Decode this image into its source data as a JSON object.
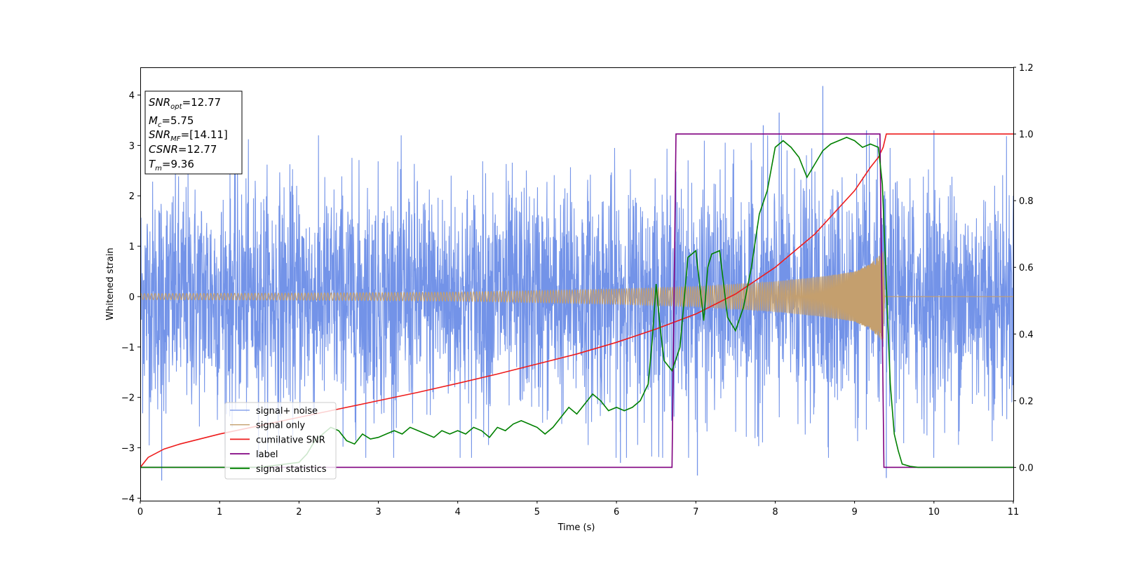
{
  "chart_data": {
    "type": "line",
    "title": "",
    "xlabel": "Time (s)",
    "ylabel": "Whitened strain",
    "xlim": [
      0,
      11
    ],
    "ylim": [
      -4.05,
      4.55
    ],
    "ylim_right": [
      -0.1,
      1.2
    ],
    "x_ticks": [
      "0",
      "1",
      "2",
      "3",
      "4",
      "5",
      "6",
      "7",
      "8",
      "9",
      "10",
      "11"
    ],
    "y_ticks": [
      "−4",
      "−3",
      "−2",
      "−1",
      "0",
      "1",
      "2",
      "3",
      "4"
    ],
    "y_right_ticks": [
      "0.0",
      "0.2",
      "0.4",
      "0.6",
      "0.8",
      "1.0",
      "1.2"
    ],
    "legend_location": "lower-left",
    "annotation": [
      {
        "sym": "SNR",
        "sub": "opt",
        "value": "=12.77"
      },
      {
        "sym": "M",
        "sub": "c",
        "value": "=5.75"
      },
      {
        "sym": "SNR",
        "sub": "MF",
        "value": "=[14.11]"
      },
      {
        "sym": "CSNR",
        "sub": "",
        "value": "=12.77"
      },
      {
        "sym": "T",
        "sub": "m",
        "value": "=9.36"
      }
    ],
    "series": [
      {
        "name": "signal+ noise",
        "axis": "left",
        "color": "#7393e8",
        "kind": "noisy-strain",
        "typical_range": [
          -2.7,
          2.7
        ],
        "extremes": [
          [
            0.27,
            -3.65
          ],
          [
            6.05,
            -3.3
          ],
          [
            7.02,
            -3.55
          ],
          [
            7.85,
            3.4
          ],
          [
            8.05,
            3.65
          ],
          [
            8.6,
            4.18
          ],
          [
            9.15,
            3.3
          ],
          [
            9.4,
            -3.6
          ],
          [
            10.0,
            3.3
          ]
        ]
      },
      {
        "name": "signal only",
        "axis": "left",
        "color": "#c49f6e",
        "kind": "chirp-envelope",
        "envelope": [
          [
            0,
            0.06
          ],
          [
            2,
            0.07
          ],
          [
            4,
            0.09
          ],
          [
            5,
            0.12
          ],
          [
            6,
            0.15
          ],
          [
            7,
            0.2
          ],
          [
            8,
            0.3
          ],
          [
            8.6,
            0.4
          ],
          [
            9.0,
            0.5
          ],
          [
            9.2,
            0.65
          ],
          [
            9.3,
            0.8
          ],
          [
            9.36,
            0.9
          ],
          [
            9.38,
            0.0
          ],
          [
            11,
            0.0
          ]
        ]
      },
      {
        "name": "cumilative SNR",
        "axis": "right",
        "color": "#ee1c1c",
        "x": [
          0,
          0.1,
          0.3,
          0.5,
          1,
          1.5,
          2,
          2.5,
          3,
          3.5,
          4,
          4.5,
          5,
          5.5,
          6,
          6.5,
          7,
          7.5,
          8,
          8.5,
          9,
          9.2,
          9.3,
          9.36,
          9.4,
          11
        ],
        "y": [
          0.0,
          0.03,
          0.055,
          0.07,
          0.1,
          0.125,
          0.15,
          0.175,
          0.2,
          0.225,
          0.252,
          0.28,
          0.31,
          0.34,
          0.375,
          0.415,
          0.46,
          0.52,
          0.6,
          0.7,
          0.83,
          0.9,
          0.93,
          0.96,
          1.0,
          1.0
        ]
      },
      {
        "name": "label",
        "axis": "right",
        "color": "#800080",
        "x": [
          0,
          6.7,
          6.75,
          9.32,
          9.37,
          11
        ],
        "y": [
          0,
          0,
          1,
          1,
          0,
          0
        ]
      },
      {
        "name": "signal statistics",
        "axis": "right",
        "color": "#008000",
        "x": [
          0,
          1.5,
          2.0,
          2.1,
          2.2,
          2.4,
          2.5,
          2.6,
          2.7,
          2.8,
          2.9,
          3.0,
          3.1,
          3.2,
          3.3,
          3.4,
          3.5,
          3.6,
          3.7,
          3.8,
          3.9,
          4.0,
          4.1,
          4.2,
          4.3,
          4.4,
          4.5,
          4.6,
          4.7,
          4.8,
          4.9,
          5.0,
          5.1,
          5.2,
          5.3,
          5.4,
          5.5,
          5.6,
          5.7,
          5.8,
          5.9,
          6.0,
          6.1,
          6.2,
          6.3,
          6.4,
          6.45,
          6.5,
          6.55,
          6.6,
          6.7,
          6.8,
          6.9,
          7.0,
          7.1,
          7.15,
          7.2,
          7.3,
          7.4,
          7.5,
          7.6,
          7.7,
          7.8,
          7.9,
          8.0,
          8.1,
          8.2,
          8.3,
          8.4,
          8.5,
          8.6,
          8.7,
          8.8,
          8.9,
          9.0,
          9.1,
          9.2,
          9.3,
          9.35,
          9.4,
          9.45,
          9.5,
          9.55,
          9.6,
          9.7,
          9.8,
          10,
          11
        ],
        "y": [
          0.0,
          0.0,
          0.015,
          0.04,
          0.08,
          0.12,
          0.11,
          0.08,
          0.07,
          0.1,
          0.085,
          0.09,
          0.1,
          0.11,
          0.1,
          0.12,
          0.11,
          0.1,
          0.09,
          0.11,
          0.1,
          0.11,
          0.1,
          0.12,
          0.11,
          0.09,
          0.12,
          0.11,
          0.13,
          0.14,
          0.13,
          0.12,
          0.1,
          0.12,
          0.15,
          0.18,
          0.16,
          0.19,
          0.22,
          0.2,
          0.17,
          0.18,
          0.17,
          0.18,
          0.2,
          0.25,
          0.38,
          0.55,
          0.42,
          0.32,
          0.29,
          0.36,
          0.63,
          0.65,
          0.44,
          0.6,
          0.64,
          0.65,
          0.45,
          0.41,
          0.48,
          0.6,
          0.76,
          0.83,
          0.96,
          0.98,
          0.96,
          0.93,
          0.87,
          0.91,
          0.95,
          0.97,
          0.98,
          0.99,
          0.98,
          0.96,
          0.97,
          0.96,
          0.85,
          0.55,
          0.25,
          0.1,
          0.05,
          0.01,
          0.003,
          0.0,
          0.0,
          0.0
        ]
      }
    ]
  }
}
